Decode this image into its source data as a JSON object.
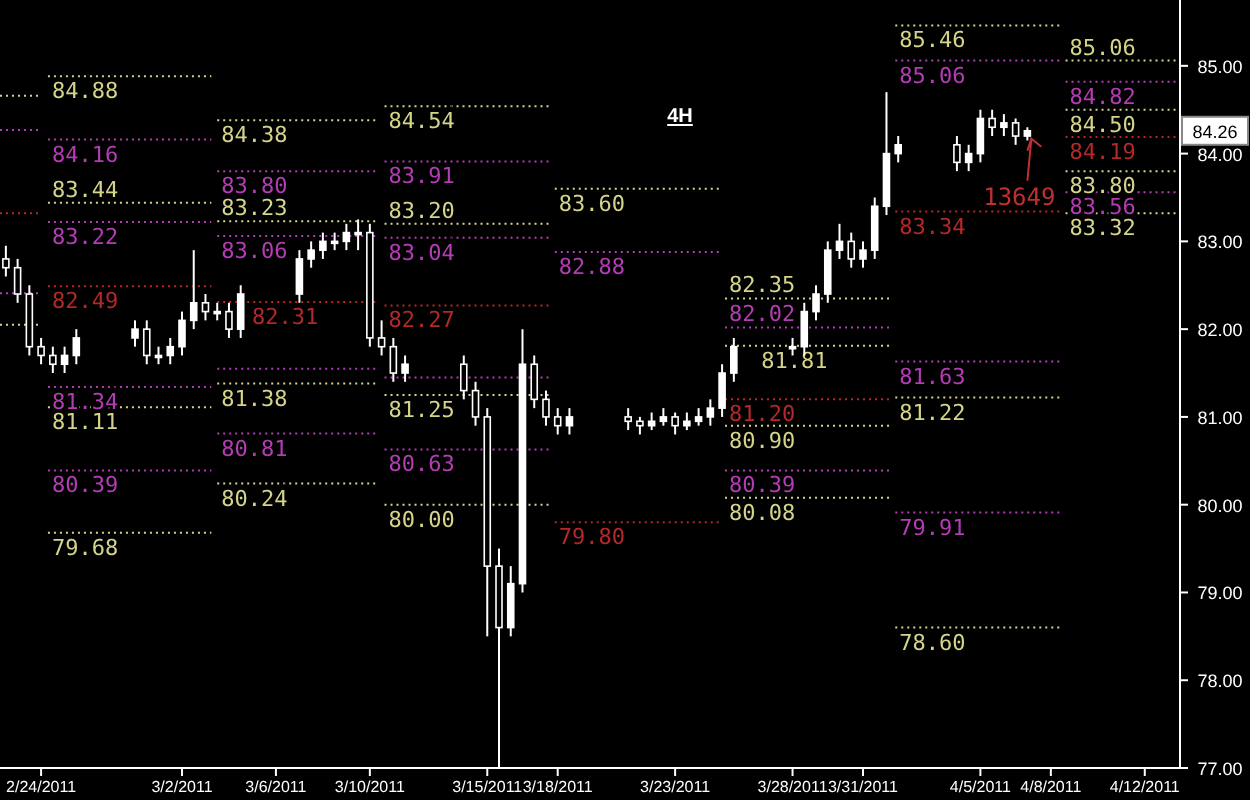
{
  "chart_data": {
    "type": "candlestick",
    "title": "4H",
    "color": "#ffffff",
    "x": [
      "2011-02-22T12:00",
      "2011-02-23T00:00",
      "2011-02-23T12:00",
      "2011-02-24T00:00",
      "2011-02-24T12:00",
      "2011-02-25T00:00",
      "2011-02-25T12:00",
      "2011-02-28T00:00",
      "2011-02-28T12:00",
      "2011-03-01T00:00",
      "2011-03-01T12:00",
      "2011-03-02T00:00",
      "2011-03-02T12:00",
      "2011-03-03T00:00",
      "2011-03-03T12:00",
      "2011-03-04T00:00",
      "2011-03-04T12:00",
      "2011-03-07T00:00",
      "2011-03-07T12:00",
      "2011-03-08T00:00",
      "2011-03-08T12:00",
      "2011-03-09T00:00",
      "2011-03-09T12:00",
      "2011-03-10T00:00",
      "2011-03-10T12:00",
      "2011-03-11T00:00",
      "2011-03-11T12:00",
      "2011-03-14T00:00",
      "2011-03-14T12:00",
      "2011-03-15T00:00",
      "2011-03-15T12:00",
      "2011-03-16T00:00",
      "2011-03-16T12:00",
      "2011-03-17T00:00",
      "2011-03-17T12:00",
      "2011-03-18T00:00",
      "2011-03-18T12:00",
      "2011-03-21T00:00",
      "2011-03-21T12:00",
      "2011-03-22T00:00",
      "2011-03-22T12:00",
      "2011-03-23T00:00",
      "2011-03-23T12:00",
      "2011-03-24T00:00",
      "2011-03-24T12:00",
      "2011-03-25T00:00",
      "2011-03-25T12:00",
      "2011-03-28T00:00",
      "2011-03-28T12:00",
      "2011-03-29T00:00",
      "2011-03-29T12:00",
      "2011-03-30T00:00",
      "2011-03-30T12:00",
      "2011-03-31T00:00",
      "2011-03-31T12:00",
      "2011-04-01T00:00",
      "2011-04-01T12:00",
      "2011-04-04T00:00",
      "2011-04-04T12:00",
      "2011-04-05T00:00",
      "2011-04-05T12:00",
      "2011-04-06T00:00",
      "2011-04-06T12:00",
      "2011-04-07T00:00"
    ],
    "ohlc": [
      [
        82.8,
        82.95,
        82.6,
        82.7
      ],
      [
        82.7,
        82.8,
        82.3,
        82.4
      ],
      [
        82.4,
        82.5,
        81.7,
        81.8
      ],
      [
        81.8,
        81.9,
        81.6,
        81.7
      ],
      [
        81.7,
        81.8,
        81.5,
        81.6
      ],
      [
        81.6,
        81.8,
        81.5,
        81.7
      ],
      [
        81.7,
        82.0,
        81.6,
        81.9
      ],
      [
        81.9,
        82.1,
        81.8,
        82.0
      ],
      [
        82.0,
        82.1,
        81.6,
        81.7
      ],
      [
        81.7,
        81.8,
        81.6,
        81.7
      ],
      [
        81.7,
        81.9,
        81.6,
        81.8
      ],
      [
        81.8,
        82.2,
        81.7,
        82.1
      ],
      [
        82.1,
        82.9,
        82.0,
        82.3
      ],
      [
        82.3,
        82.4,
        82.1,
        82.2
      ],
      [
        82.2,
        82.3,
        82.1,
        82.2
      ],
      [
        82.2,
        82.3,
        81.9,
        82.0
      ],
      [
        82.0,
        82.5,
        81.9,
        82.4
      ],
      [
        82.4,
        82.9,
        82.3,
        82.8
      ],
      [
        82.8,
        83.0,
        82.7,
        82.9
      ],
      [
        82.9,
        83.1,
        82.8,
        83.0
      ],
      [
        83.0,
        83.1,
        82.9,
        83.0
      ],
      [
        83.0,
        83.2,
        82.9,
        83.1
      ],
      [
        83.1,
        83.25,
        82.9,
        83.1
      ],
      [
        83.1,
        83.2,
        81.8,
        81.9
      ],
      [
        81.9,
        82.1,
        81.7,
        81.8
      ],
      [
        81.8,
        81.9,
        81.4,
        81.5
      ],
      [
        81.5,
        81.7,
        81.4,
        81.6
      ],
      [
        81.6,
        81.7,
        81.2,
        81.3
      ],
      [
        81.3,
        81.4,
        80.9,
        81.0
      ],
      [
        81.0,
        81.1,
        78.5,
        79.3
      ],
      [
        79.3,
        79.5,
        77.0,
        78.6
      ],
      [
        78.6,
        79.3,
        78.5,
        79.1
      ],
      [
        79.1,
        82.0,
        79.0,
        81.6
      ],
      [
        81.6,
        81.7,
        81.1,
        81.2
      ],
      [
        81.2,
        81.3,
        80.9,
        81.0
      ],
      [
        81.0,
        81.1,
        80.8,
        80.9
      ],
      [
        80.9,
        81.1,
        80.8,
        81.0
      ],
      [
        81.0,
        81.1,
        80.85,
        80.95
      ],
      [
        80.95,
        81.0,
        80.8,
        80.9
      ],
      [
        80.9,
        81.05,
        80.85,
        80.95
      ],
      [
        80.95,
        81.1,
        80.9,
        81.0
      ],
      [
        81.0,
        81.05,
        80.8,
        80.9
      ],
      [
        80.9,
        81.05,
        80.85,
        80.95
      ],
      [
        80.95,
        81.1,
        80.9,
        81.0
      ],
      [
        81.0,
        81.2,
        80.9,
        81.1
      ],
      [
        81.1,
        81.6,
        81.0,
        81.5
      ],
      [
        81.5,
        81.9,
        81.4,
        81.8
      ],
      [
        81.8,
        81.9,
        81.7,
        81.8
      ],
      [
        81.8,
        82.3,
        81.7,
        82.2
      ],
      [
        82.2,
        82.5,
        82.1,
        82.4
      ],
      [
        82.4,
        83.0,
        82.3,
        82.9
      ],
      [
        82.9,
        83.2,
        82.8,
        83.0
      ],
      [
        83.0,
        83.1,
        82.7,
        82.8
      ],
      [
        82.8,
        83.0,
        82.7,
        82.9
      ],
      [
        82.9,
        83.5,
        82.8,
        83.4
      ],
      [
        83.4,
        84.7,
        83.3,
        84.0
      ],
      [
        84.0,
        84.2,
        83.9,
        84.1
      ],
      [
        84.1,
        84.2,
        83.8,
        83.9
      ],
      [
        83.9,
        84.1,
        83.8,
        84.0
      ],
      [
        84.0,
        84.5,
        83.9,
        84.4
      ],
      [
        84.4,
        84.5,
        84.2,
        84.3
      ],
      [
        84.3,
        84.45,
        84.2,
        84.35
      ],
      [
        84.35,
        84.4,
        84.1,
        84.2
      ],
      [
        84.2,
        84.3,
        84.15,
        84.26
      ]
    ],
    "xlim": [
      "2011-02-22T06:00",
      "2011-04-13T12:00"
    ],
    "xticks": [
      {
        "value": "2011-02-24",
        "label": "2/24/2011"
      },
      {
        "value": "2011-03-02",
        "label": "3/2/2011"
      },
      {
        "value": "2011-03-06",
        "label": "3/6/2011"
      },
      {
        "value": "2011-03-10",
        "label": "3/10/2011"
      },
      {
        "value": "2011-03-15",
        "label": "3/15/2011"
      },
      {
        "value": "2011-03-18",
        "label": "3/18/2011"
      },
      {
        "value": "2011-03-23",
        "label": "3/23/2011"
      },
      {
        "value": "2011-03-28",
        "label": "3/28/2011"
      },
      {
        "value": "2011-03-31",
        "label": "3/31/2011"
      },
      {
        "value": "2011-04-05",
        "label": "4/5/2011"
      },
      {
        "value": "2011-04-08",
        "label": "4/8/2011"
      },
      {
        "value": "2011-04-12",
        "label": "4/12/2011"
      }
    ],
    "ylim": [
      77,
      85.75
    ],
    "yticks": [
      {
        "value": 77,
        "label": "77.00"
      },
      {
        "value": 78,
        "label": "78.00"
      },
      {
        "value": 79,
        "label": "79.00"
      },
      {
        "value": 80,
        "label": "80.00"
      },
      {
        "value": 81,
        "label": "81.00"
      },
      {
        "value": 82,
        "label": "82.00"
      },
      {
        "value": 83,
        "label": "83.00"
      },
      {
        "value": 84,
        "label": "84.00"
      },
      {
        "value": 85,
        "label": "85.00"
      }
    ],
    "series": [
      {
        "type": "line",
        "x": [
          "2011-02-22T06:00",
          "2011-02-24T00:00"
        ],
        "values": [
          84.66,
          84.66
        ],
        "color": "#d4d48a",
        "line_style": "dotted"
      },
      {
        "type": "line",
        "x": [
          "2011-02-22T06:00",
          "2011-02-24T00:00"
        ],
        "values": [
          84.27,
          84.27
        ],
        "color": "#b43cb4",
        "line_style": "dotted"
      },
      {
        "type": "line",
        "x": [
          "2011-02-22T06:00",
          "2011-02-24T00:00"
        ],
        "values": [
          83.32,
          83.32
        ],
        "color": "#b42828",
        "line_style": "dotted"
      },
      {
        "type": "line",
        "x": [
          "2011-02-22T06:00",
          "2011-02-24T00:00"
        ],
        "values": [
          82.41,
          82.41
        ],
        "color": "#b43cb4",
        "line_style": "dotted"
      },
      {
        "type": "line",
        "x": [
          "2011-02-22T06:00",
          "2011-02-24T00:00"
        ],
        "values": [
          82.05,
          82.05
        ],
        "color": "#d4d48a",
        "line_style": "dotted"
      },
      {
        "type": "line",
        "x": [
          "2011-02-24T07:00",
          "2011-03-03T06:00"
        ],
        "values": [
          84.88,
          84.88
        ],
        "color": "#d4d48a",
        "line_style": "dotted",
        "value_labels": [
          "84.88",
          null
        ]
      },
      {
        "type": "line",
        "x": [
          "2011-02-24T07:00",
          "2011-03-03T06:00"
        ],
        "values": [
          84.16,
          84.16
        ],
        "color": "#b43cb4",
        "line_style": "dotted",
        "value_labels": [
          "84.16",
          null
        ]
      },
      {
        "type": "line",
        "x": [
          "2011-02-24T07:00",
          "2011-03-03T06:00"
        ],
        "values": [
          83.44,
          83.44
        ],
        "color": "#d4d48a",
        "line_style": "dotted",
        "value_labels": [
          "83.44",
          null
        ]
      },
      {
        "type": "line",
        "x": [
          "2011-02-24T07:00",
          "2011-03-03T06:00"
        ],
        "values": [
          83.22,
          83.22
        ],
        "color": "#b43cb4",
        "line_style": "dotted",
        "value_labels": [
          "83.22",
          null
        ]
      },
      {
        "type": "line",
        "x": [
          "2011-02-24T07:00",
          "2011-03-03T06:00"
        ],
        "values": [
          82.49,
          82.49
        ],
        "color": "#b42828",
        "line_style": "dotted",
        "value_labels": [
          "82.49",
          null
        ]
      },
      {
        "type": "line",
        "x": [
          "2011-02-24T07:00",
          "2011-03-03T06:00"
        ],
        "values": [
          81.34,
          81.34
        ],
        "color": "#b43cb4",
        "line_style": "dotted",
        "value_labels": [
          "81.34",
          null
        ]
      },
      {
        "type": "line",
        "x": [
          "2011-02-24T07:00",
          "2011-03-03T06:00"
        ],
        "values": [
          81.11,
          81.11
        ],
        "color": "#d4d48a",
        "line_style": "dotted",
        "value_labels": [
          "81.11",
          null
        ]
      },
      {
        "type": "line",
        "x": [
          "2011-02-24T07:00",
          "2011-03-03T06:00"
        ],
        "values": [
          80.39,
          80.39
        ],
        "color": "#b43cb4",
        "line_style": "dotted",
        "value_labels": [
          "80.39",
          null
        ]
      },
      {
        "type": "line",
        "x": [
          "2011-02-24T07:00",
          "2011-03-03T06:00"
        ],
        "values": [
          79.68,
          79.68
        ],
        "color": "#d4d48a",
        "line_style": "dotted",
        "value_labels": [
          "79.68",
          null
        ]
      },
      {
        "type": "line",
        "x": [
          "2011-03-03T12:00",
          "2011-03-10T09:00"
        ],
        "values": [
          84.38,
          84.38
        ],
        "color": "#d4d48a",
        "line_style": "dotted",
        "value_labels": [
          "84.38",
          null
        ]
      },
      {
        "type": "line",
        "x": [
          "2011-03-03T12:00",
          "2011-03-10T09:00"
        ],
        "values": [
          83.8,
          83.8
        ],
        "color": "#b43cb4",
        "line_style": "dotted",
        "value_labels": [
          "83.80",
          null
        ]
      },
      {
        "type": "line",
        "x": [
          "2011-03-03T12:00",
          "2011-03-10T09:00"
        ],
        "values": [
          83.23,
          83.23
        ],
        "color": "#d4d48a",
        "line_style": "dotted",
        "value_labels": [
          "83.23",
          null
        ]
      },
      {
        "type": "line",
        "x": [
          "2011-03-03T12:00",
          "2011-03-10T09:00"
        ],
        "values": [
          83.06,
          83.06
        ],
        "color": "#b43cb4",
        "line_style": "dotted",
        "value_labels": [
          "83.06",
          null
        ]
      },
      {
        "type": "line",
        "x": [
          "2011-03-03T12:00",
          "2011-03-10T09:00"
        ],
        "values": [
          82.31,
          82.31
        ],
        "color": "#b42828",
        "line_style": "dotted",
        "value_labels": [
          "82.31",
          null
        ]
      },
      {
        "type": "line",
        "x": [
          "2011-03-03T12:00",
          "2011-03-10T09:00"
        ],
        "values": [
          81.55,
          81.55
        ],
        "color": "#b43cb4",
        "line_style": "dotted"
      },
      {
        "type": "line",
        "x": [
          "2011-03-03T12:00",
          "2011-03-10T09:00"
        ],
        "values": [
          81.38,
          81.38
        ],
        "color": "#d4d48a",
        "line_style": "dotted",
        "value_labels": [
          "81.38",
          null
        ]
      },
      {
        "type": "line",
        "x": [
          "2011-03-03T12:00",
          "2011-03-10T09:00"
        ],
        "values": [
          80.81,
          80.81
        ],
        "color": "#b43cb4",
        "line_style": "dotted",
        "value_labels": [
          "80.81",
          null
        ]
      },
      {
        "type": "line",
        "x": [
          "2011-03-03T12:00",
          "2011-03-10T09:00"
        ],
        "values": [
          80.24,
          80.24
        ],
        "color": "#d4d48a",
        "line_style": "dotted",
        "value_labels": [
          "80.24",
          null
        ]
      },
      {
        "type": "line",
        "x": [
          "2011-03-10T15:00",
          "2011-03-17T15:00"
        ],
        "values": [
          84.54,
          84.54
        ],
        "color": "#d4d48a",
        "line_style": "dotted",
        "value_labels": [
          "84.54",
          null
        ]
      },
      {
        "type": "line",
        "x": [
          "2011-03-10T15:00",
          "2011-03-17T15:00"
        ],
        "values": [
          83.91,
          83.91
        ],
        "color": "#b43cb4",
        "line_style": "dotted",
        "value_labels": [
          "83.91",
          null
        ]
      },
      {
        "type": "line",
        "x": [
          "2011-03-10T15:00",
          "2011-03-17T15:00"
        ],
        "values": [
          83.2,
          83.2
        ],
        "color": "#d4d48a",
        "line_style": "dotted",
        "value_labels": [
          "83.20",
          null
        ]
      },
      {
        "type": "line",
        "x": [
          "2011-03-10T15:00",
          "2011-03-17T15:00"
        ],
        "values": [
          83.04,
          83.04
        ],
        "color": "#b43cb4",
        "line_style": "dotted",
        "value_labels": [
          "83.04",
          null
        ]
      },
      {
        "type": "line",
        "x": [
          "2011-03-10T15:00",
          "2011-03-17T15:00"
        ],
        "values": [
          82.27,
          82.27
        ],
        "color": "#b42828",
        "line_style": "dotted",
        "value_labels": [
          "82.27",
          null
        ]
      },
      {
        "type": "line",
        "x": [
          "2011-03-10T15:00",
          "2011-03-17T15:00"
        ],
        "values": [
          81.45,
          81.45
        ],
        "color": "#b43cb4",
        "line_style": "dotted"
      },
      {
        "type": "line",
        "x": [
          "2011-03-10T15:00",
          "2011-03-17T15:00"
        ],
        "values": [
          81.25,
          81.25
        ],
        "color": "#d4d48a",
        "line_style": "dotted",
        "value_labels": [
          "81.25",
          null
        ]
      },
      {
        "type": "line",
        "x": [
          "2011-03-10T15:00",
          "2011-03-17T15:00"
        ],
        "values": [
          80.63,
          80.63
        ],
        "color": "#b43cb4",
        "line_style": "dotted",
        "value_labels": [
          "80.63",
          null
        ]
      },
      {
        "type": "line",
        "x": [
          "2011-03-10T15:00",
          "2011-03-17T15:00"
        ],
        "values": [
          80.0,
          80.0
        ],
        "color": "#d4d48a",
        "line_style": "dotted",
        "value_labels": [
          "80.00",
          null
        ]
      },
      {
        "type": "line",
        "x": [
          "2011-03-17T21:00",
          "2011-03-24T21:00"
        ],
        "values": [
          83.6,
          83.6
        ],
        "color": "#d4d48a",
        "line_style": "dotted",
        "value_labels": [
          "83.60",
          null
        ]
      },
      {
        "type": "line",
        "x": [
          "2011-03-17T21:00",
          "2011-03-24T21:00"
        ],
        "values": [
          82.88,
          82.88
        ],
        "color": "#b43cb4",
        "line_style": "dotted",
        "value_labels": [
          "82.88",
          null
        ]
      },
      {
        "type": "line",
        "x": [
          "2011-03-17T21:00",
          "2011-03-24T21:00"
        ],
        "values": [
          79.8,
          79.8
        ],
        "color": "#b42828",
        "line_style": "dotted",
        "value_labels": [
          "79.80",
          null
        ]
      },
      {
        "type": "line",
        "x": [
          "2011-03-25T03:00",
          "2011-04-01T03:00"
        ],
        "values": [
          82.35,
          82.35
        ],
        "color": "#d4d48a",
        "line_style": "dotted",
        "value_labels": [
          "82.35",
          null
        ]
      },
      {
        "type": "line",
        "x": [
          "2011-03-25T03:00",
          "2011-04-01T03:00"
        ],
        "values": [
          82.02,
          82.02
        ],
        "color": "#b43cb4",
        "line_style": "dotted",
        "value_labels": [
          "82.02",
          null
        ]
      },
      {
        "type": "line",
        "x": [
          "2011-03-25T03:00",
          "2011-04-01T03:00"
        ],
        "values": [
          81.81,
          81.81
        ],
        "color": "#d4d48a",
        "line_style": "dotted",
        "value_labels": [
          "81.81",
          null
        ]
      },
      {
        "type": "line",
        "x": [
          "2011-03-25T03:00",
          "2011-04-01T03:00"
        ],
        "values": [
          81.2,
          81.2
        ],
        "color": "#b42828",
        "line_style": "dotted",
        "value_labels": [
          "81.20",
          null
        ]
      },
      {
        "type": "line",
        "x": [
          "2011-03-25T03:00",
          "2011-04-01T03:00"
        ],
        "values": [
          80.9,
          80.9
        ],
        "color": "#d4d48a",
        "line_style": "dotted",
        "value_labels": [
          "80.90",
          null
        ]
      },
      {
        "type": "line",
        "x": [
          "2011-03-25T03:00",
          "2011-04-01T03:00"
        ],
        "values": [
          80.39,
          80.39
        ],
        "color": "#b43cb4",
        "line_style": "dotted",
        "value_labels": [
          "80.39",
          null
        ]
      },
      {
        "type": "line",
        "x": [
          "2011-03-25T03:00",
          "2011-04-01T03:00"
        ],
        "values": [
          80.08,
          80.08
        ],
        "color": "#d4d48a",
        "line_style": "dotted",
        "value_labels": [
          "80.08",
          null
        ]
      },
      {
        "type": "line",
        "x": [
          "2011-04-01T09:00",
          "2011-04-08T09:00"
        ],
        "values": [
          85.46,
          85.46
        ],
        "color": "#d4d48a",
        "line_style": "dotted",
        "value_labels": [
          "85.46",
          null
        ]
      },
      {
        "type": "line",
        "x": [
          "2011-04-01T09:00",
          "2011-04-08T09:00"
        ],
        "values": [
          85.06,
          85.06
        ],
        "color": "#b43cb4",
        "line_style": "dotted",
        "value_labels": [
          "85.06",
          null
        ]
      },
      {
        "type": "line",
        "x": [
          "2011-04-01T09:00",
          "2011-04-08T09:00"
        ],
        "values": [
          83.34,
          83.34
        ],
        "color": "#b42828",
        "line_style": "dotted",
        "value_labels": [
          "83.34",
          null
        ]
      },
      {
        "type": "line",
        "x": [
          "2011-04-01T09:00",
          "2011-04-08T09:00"
        ],
        "values": [
          81.63,
          81.63
        ],
        "color": "#b43cb4",
        "line_style": "dotted",
        "value_labels": [
          "81.63",
          null
        ]
      },
      {
        "type": "line",
        "x": [
          "2011-04-01T09:00",
          "2011-04-08T09:00"
        ],
        "values": [
          81.22,
          81.22
        ],
        "color": "#d4d48a",
        "line_style": "dotted",
        "value_labels": [
          "81.22",
          null
        ]
      },
      {
        "type": "line",
        "x": [
          "2011-04-01T09:00",
          "2011-04-08T09:00"
        ],
        "values": [
          79.91,
          79.91
        ],
        "color": "#b43cb4",
        "line_style": "dotted",
        "value_labels": [
          "79.91",
          null
        ]
      },
      {
        "type": "line",
        "x": [
          "2011-04-01T09:00",
          "2011-04-08T09:00"
        ],
        "values": [
          78.6,
          78.6
        ],
        "color": "#d4d48a",
        "line_style": "dotted",
        "value_labels": [
          "78.60",
          null
        ]
      },
      {
        "type": "line",
        "x": [
          "2011-04-08T15:00",
          "2011-04-13T12:00"
        ],
        "values": [
          85.06,
          85.06
        ],
        "color": "#d4d48a",
        "line_style": "dotted",
        "value_labels": [
          "85.06",
          null
        ]
      },
      {
        "type": "line",
        "x": [
          "2011-04-08T15:00",
          "2011-04-13T12:00"
        ],
        "values": [
          84.82,
          84.82
        ],
        "color": "#b43cb4",
        "line_style": "dotted",
        "value_labels": [
          "84.82",
          null
        ]
      },
      {
        "type": "line",
        "x": [
          "2011-04-08T15:00",
          "2011-04-13T12:00"
        ],
        "values": [
          84.5,
          84.5
        ],
        "color": "#d4d48a",
        "line_style": "dotted",
        "value_labels": [
          "84.50",
          null
        ]
      },
      {
        "type": "line",
        "x": [
          "2011-04-08T15:00",
          "2011-04-13T12:00"
        ],
        "values": [
          84.19,
          84.19
        ],
        "color": "#b42828",
        "line_style": "dotted",
        "value_labels": [
          "84.19",
          null
        ]
      },
      {
        "type": "line",
        "x": [
          "2011-04-08T15:00",
          "2011-04-13T12:00"
        ],
        "values": [
          83.8,
          83.8
        ],
        "color": "#d4d48a",
        "line_style": "dotted",
        "value_labels": [
          "83.80",
          null
        ]
      },
      {
        "type": "line",
        "x": [
          "2011-04-08T15:00",
          "2011-04-13T12:00"
        ],
        "values": [
          83.56,
          83.56
        ],
        "color": "#b43cb4",
        "line_style": "dotted",
        "value_labels": [
          "83.56",
          null
        ]
      },
      {
        "type": "line",
        "x": [
          "2011-04-08T15:00",
          "2011-04-13T12:00"
        ],
        "values": [
          83.32,
          83.32
        ],
        "color": "#d4d48a",
        "line_style": "dotted",
        "value_labels": [
          "83.32",
          null
        ]
      }
    ],
    "annotations": [
      {
        "text": "13649",
        "x": "2011-04-07T00:00",
        "y": 84.26
      },
      {
        "text": "84.26",
        "y": 84.26
      }
    ]
  }
}
